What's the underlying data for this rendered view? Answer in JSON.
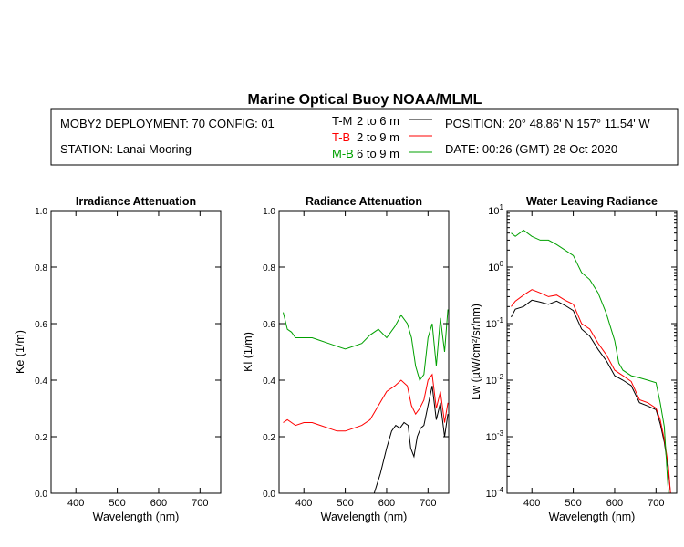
{
  "title": "Marine Optical Buoy NOAA/MLML",
  "header": {
    "deployment": "MOBY2 DEPLOYMENT: 70 CONFIG: 01",
    "station": "STATION: Lanai Mooring",
    "position": "POSITION: 20° 48.86' N   157° 11.54' W",
    "date": "DATE: 00:26 (GMT) 28 Oct 2020",
    "legend": [
      {
        "key": "T-M",
        "range": "2 to 6  m",
        "color": "#000000"
      },
      {
        "key": "T-B",
        "range": "2 to 9  m",
        "color": "#ff0000"
      },
      {
        "key": "M-B",
        "range": "6 to 9  m",
        "color": "#00a000"
      }
    ]
  },
  "chart_data": [
    {
      "type": "line",
      "title": "Irradiance Attenuation",
      "xlabel": "Wavelength (nm)",
      "ylabel": "Ke  (1/m)",
      "xlim": [
        340,
        750
      ],
      "ylim": [
        0,
        1.0
      ],
      "xticks": [
        400,
        500,
        600,
        700
      ],
      "yticks": [
        0.0,
        0.2,
        0.4,
        0.6,
        0.8,
        1.0
      ],
      "ytick_labels": [
        "0.0",
        "0.2",
        "0.4",
        "0.6",
        "0.8",
        "1.0"
      ],
      "series": []
    },
    {
      "type": "line",
      "title": "Radiance Attenuation",
      "xlabel": "Wavelength (nm)",
      "ylabel": "Kl  (1/m)",
      "xlim": [
        340,
        750
      ],
      "ylim": [
        0,
        1.0
      ],
      "xticks": [
        400,
        500,
        600,
        700
      ],
      "yticks": [
        0.0,
        0.2,
        0.4,
        0.6,
        0.8,
        1.0
      ],
      "ytick_labels": [
        "0.0",
        "0.2",
        "0.4",
        "0.6",
        "0.8",
        "1.0"
      ],
      "series": [
        {
          "name": "T-M",
          "color": "#000000",
          "x": [
            570,
            585,
            600,
            612,
            622,
            632,
            642,
            652,
            658,
            666,
            674,
            682,
            690,
            700,
            710,
            720,
            730,
            740,
            748
          ],
          "y": [
            0.0,
            0.07,
            0.16,
            0.22,
            0.24,
            0.23,
            0.25,
            0.24,
            0.16,
            0.13,
            0.2,
            0.23,
            0.24,
            0.31,
            0.38,
            0.26,
            0.32,
            0.2,
            0.28
          ]
        },
        {
          "name": "T-B",
          "color": "#ff0000",
          "x": [
            350,
            360,
            380,
            400,
            420,
            440,
            460,
            480,
            500,
            520,
            540,
            560,
            580,
            600,
            620,
            635,
            650,
            660,
            670,
            680,
            690,
            700,
            710,
            720,
            730,
            740,
            748
          ],
          "y": [
            0.25,
            0.26,
            0.24,
            0.25,
            0.25,
            0.24,
            0.23,
            0.22,
            0.22,
            0.23,
            0.24,
            0.26,
            0.31,
            0.36,
            0.38,
            0.4,
            0.38,
            0.31,
            0.28,
            0.3,
            0.33,
            0.4,
            0.42,
            0.3,
            0.36,
            0.25,
            0.32
          ]
        },
        {
          "name": "M-B",
          "color": "#00a000",
          "x": [
            350,
            360,
            370,
            380,
            400,
            420,
            440,
            460,
            480,
            500,
            520,
            540,
            560,
            580,
            600,
            620,
            635,
            650,
            660,
            670,
            680,
            690,
            700,
            710,
            720,
            730,
            740,
            748
          ],
          "y": [
            0.64,
            0.58,
            0.57,
            0.55,
            0.55,
            0.55,
            0.54,
            0.53,
            0.52,
            0.51,
            0.52,
            0.53,
            0.56,
            0.58,
            0.55,
            0.59,
            0.63,
            0.6,
            0.55,
            0.45,
            0.4,
            0.42,
            0.55,
            0.6,
            0.45,
            0.62,
            0.5,
            0.65
          ]
        }
      ]
    },
    {
      "type": "line",
      "title": "Water Leaving Radiance",
      "xlabel": "Wavelength (nm)",
      "ylabel": "Lw  (µW/cm²/sr/nm)",
      "xscale": "linear",
      "yscale": "log",
      "xlim": [
        340,
        750
      ],
      "ylim": [
        0.0001,
        10
      ],
      "xticks": [
        400,
        500,
        600,
        700
      ],
      "yticks": [
        0.0001,
        0.001,
        0.01,
        0.1,
        1,
        10
      ],
      "ytick_exponents": [
        "-4",
        "-3",
        "-2",
        "-1",
        "0",
        "1"
      ],
      "series": [
        {
          "name": "T-M",
          "color": "#000000",
          "x": [
            350,
            360,
            380,
            400,
            420,
            440,
            460,
            480,
            500,
            520,
            540,
            560,
            580,
            600,
            620,
            640,
            660,
            680,
            700,
            710,
            720,
            730,
            735
          ],
          "y": [
            0.13,
            0.18,
            0.2,
            0.26,
            0.24,
            0.22,
            0.25,
            0.21,
            0.17,
            0.08,
            0.06,
            0.035,
            0.022,
            0.012,
            0.01,
            0.008,
            0.004,
            0.0035,
            0.003,
            0.0017,
            0.0008,
            0.00025,
            0.0001
          ]
        },
        {
          "name": "T-B",
          "color": "#ff0000",
          "x": [
            350,
            360,
            380,
            400,
            420,
            440,
            460,
            480,
            500,
            520,
            540,
            560,
            580,
            600,
            620,
            640,
            660,
            680,
            700,
            710,
            720,
            730,
            735
          ],
          "y": [
            0.2,
            0.25,
            0.32,
            0.4,
            0.35,
            0.3,
            0.32,
            0.26,
            0.22,
            0.1,
            0.08,
            0.045,
            0.028,
            0.015,
            0.012,
            0.0095,
            0.0045,
            0.004,
            0.0032,
            0.002,
            0.0009,
            0.0003,
            0.0001
          ]
        },
        {
          "name": "M-B",
          "color": "#00a000",
          "x": [
            350,
            360,
            380,
            400,
            420,
            440,
            460,
            480,
            500,
            520,
            540,
            560,
            580,
            600,
            610,
            620,
            640,
            660,
            680,
            700,
            710,
            720,
            730
          ],
          "y": [
            4.0,
            3.5,
            4.5,
            3.5,
            3.0,
            3.0,
            2.5,
            2.0,
            1.6,
            0.8,
            0.6,
            0.35,
            0.15,
            0.05,
            0.02,
            0.015,
            0.012,
            0.011,
            0.01,
            0.009,
            0.004,
            0.0015,
            0.0001
          ]
        }
      ]
    }
  ]
}
